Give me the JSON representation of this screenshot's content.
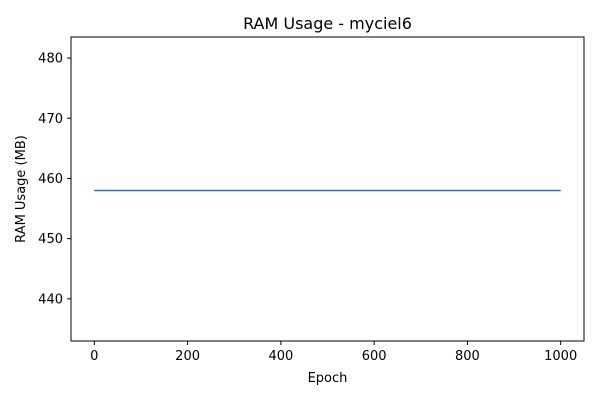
{
  "chart_data": {
    "type": "line",
    "title": "RAM Usage - myciel6",
    "xlabel": "Epoch",
    "ylabel": "RAM Usage (MB)",
    "xlim": [
      -50,
      1050
    ],
    "ylim": [
      433,
      483.5
    ],
    "xticks": [
      0,
      200,
      400,
      600,
      800,
      1000
    ],
    "xtick_labels": [
      "0",
      "200",
      "400",
      "600",
      "800",
      "1000"
    ],
    "yticks": [
      440,
      450,
      460,
      470,
      480
    ],
    "ytick_labels": [
      "440",
      "450",
      "460",
      "470",
      "480"
    ],
    "grid": false,
    "series": [
      {
        "color": "#1f77b4",
        "x": [
          0,
          1000
        ],
        "y": [
          458,
          458
        ]
      }
    ]
  }
}
